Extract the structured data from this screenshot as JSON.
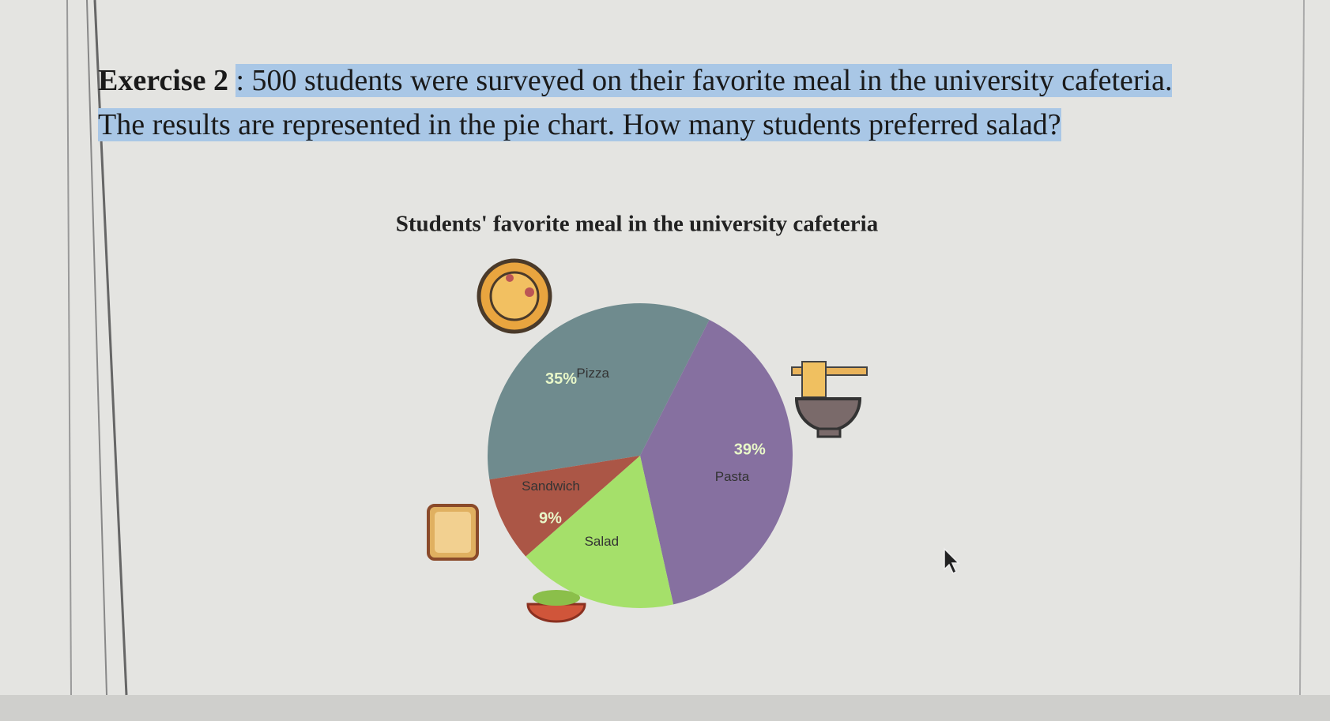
{
  "exercise": {
    "label": "Exercise 2",
    "line1": ": 500 students were surveyed on their favorite meal in the university cafeteria.",
    "line2": "The results are represented in the pie chart. How many students preferred salad?"
  },
  "chart_data": {
    "type": "pie",
    "title": "Students' favorite meal in the university cafeteria",
    "categories": [
      "Pizza",
      "Pasta",
      "Salad",
      "Sandwich"
    ],
    "values": [
      35,
      39,
      17,
      9
    ],
    "value_labels": [
      "35%",
      "39%",
      null,
      "9%"
    ],
    "colors": [
      "#6f8b8e",
      "#8670a0",
      "#a5e06a",
      "#ab5646"
    ]
  }
}
